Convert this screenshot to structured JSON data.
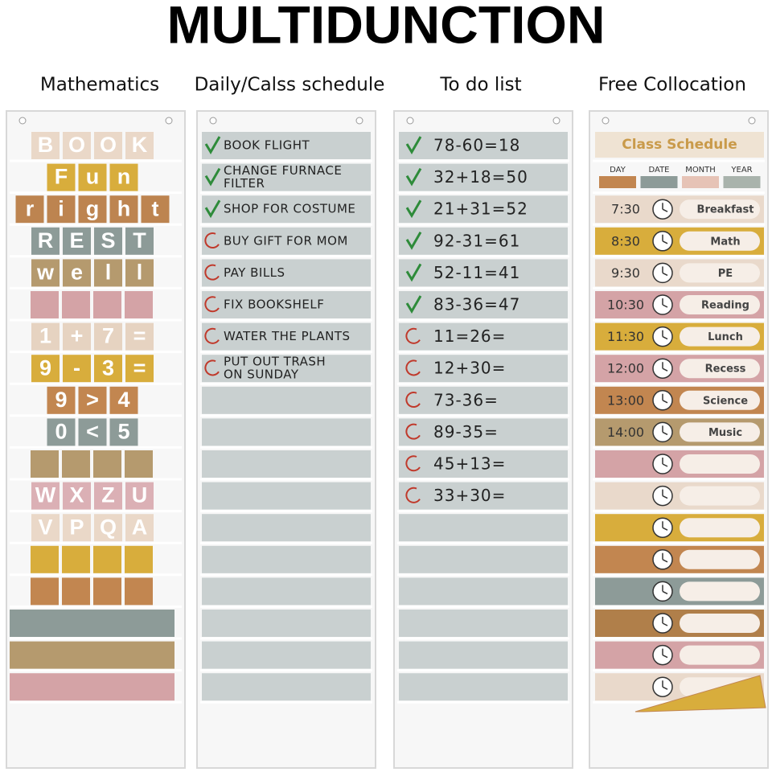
{
  "header": {
    "title": "MULTIDUNCTION"
  },
  "panels": [
    {
      "title": "Mathematics",
      "tile_rows": [
        {
          "tiles": [
            "B",
            "O",
            "O",
            "K"
          ],
          "color": "#ead8c8"
        },
        {
          "tiles": [
            "F",
            "u",
            "n"
          ],
          "color": "#d8ad3c"
        },
        {
          "tiles": [
            "r",
            "i",
            "g",
            "h",
            "t"
          ],
          "color": "#bd8450"
        },
        {
          "tiles": [
            "R",
            "E",
            "S",
            "T"
          ],
          "color": "#8d9b98"
        },
        {
          "tiles": [
            "w",
            "e",
            "l",
            "l"
          ],
          "color": "#b59a6e"
        },
        {
          "tiles": [
            "1",
            "+",
            "7",
            "="
          ],
          "color": "#e6d3c1"
        },
        {
          "tiles": [
            "9",
            "-",
            "3",
            "="
          ],
          "color": "#d8ad3c"
        },
        {
          "tiles": [
            "9",
            ">",
            "4"
          ],
          "color": "#c28650"
        },
        {
          "tiles": [
            "0",
            "<",
            "5"
          ],
          "color": "#8d9b98"
        },
        {
          "tiles": [
            "W",
            "X",
            "Z",
            "U"
          ],
          "color": "#dbb0b5"
        },
        {
          "tiles": [
            "V",
            "P",
            "Q",
            "A"
          ],
          "color": "#ead8c8"
        }
      ]
    },
    {
      "title": "Daily/Calss schedule",
      "items": [
        {
          "lines": [
            "BOOK FLIGHT"
          ],
          "done": true
        },
        {
          "lines": [
            "CHANGE FURNACE",
            "FILTER"
          ],
          "done": true
        },
        {
          "lines": [
            "SHOP FOR COSTUME"
          ],
          "done": true
        },
        {
          "lines": [
            "BUY GIFT FOR MOM"
          ],
          "done": false
        },
        {
          "lines": [
            "PAY BILLS"
          ],
          "done": false
        },
        {
          "lines": [
            "FIX BOOKSHELF"
          ],
          "done": false
        },
        {
          "lines": [
            "WATER THE PLANTS"
          ],
          "done": false
        },
        {
          "lines": [
            "PUT OUT TRASH",
            "ON SUNDAY"
          ],
          "done": false
        }
      ]
    },
    {
      "title": "To do list",
      "items": [
        {
          "text": "78-60=18",
          "done": true
        },
        {
          "text": "32+18=50",
          "done": true
        },
        {
          "text": "21+31=52",
          "done": true
        },
        {
          "text": "92-31=61",
          "done": true
        },
        {
          "text": "52-11=41",
          "done": true
        },
        {
          "text": "83-36=47",
          "done": true
        },
        {
          "text": "11=26=",
          "done": false
        },
        {
          "text": "12+30=",
          "done": false
        },
        {
          "text": "73-36=",
          "done": false
        },
        {
          "text": "89-35=",
          "done": false
        },
        {
          "text": "45+13=",
          "done": false
        },
        {
          "text": "33+30=",
          "done": false
        }
      ]
    },
    {
      "title": "Free Collocation",
      "card_title": "Class Schedule",
      "date_labels": [
        "DAY",
        "DATE",
        "MONTH",
        "YEAR"
      ],
      "rows": [
        {
          "time": "7:30",
          "subject": "Breakfast",
          "color": "#e9d9cb"
        },
        {
          "time": "8:30",
          "subject": "Math",
          "color": "#d8ad3c"
        },
        {
          "time": "9:30",
          "subject": "PE",
          "color": "#e9d9cb"
        },
        {
          "time": "10:30",
          "subject": "Reading",
          "color": "#d4a3a6"
        },
        {
          "time": "11:30",
          "subject": "Lunch",
          "color": "#d8ad3c"
        },
        {
          "time": "12:00",
          "subject": "Recess",
          "color": "#d4a3a6"
        },
        {
          "time": "13:00",
          "subject": "Science",
          "color": "#c28650"
        },
        {
          "time": "14:00",
          "subject": "Music",
          "color": "#b59a6e"
        }
      ]
    }
  ]
}
